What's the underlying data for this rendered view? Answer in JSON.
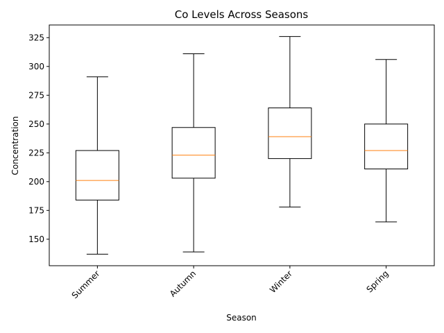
{
  "chart_data": {
    "type": "box",
    "title": "Co Levels Across Seasons",
    "xlabel": "Season",
    "ylabel": "Concentration",
    "ylim": [
      127,
      336
    ],
    "yticks": [
      150,
      175,
      200,
      225,
      250,
      275,
      300,
      325
    ],
    "ytick_labels": [
      "150",
      "175",
      "200",
      "225",
      "250",
      "275",
      "300",
      "325"
    ],
    "categories": [
      "Summer",
      "Autumn",
      "Winter",
      "Spring"
    ],
    "boxes": [
      {
        "category": "Summer",
        "min": 137,
        "q1": 184,
        "median": 201,
        "q3": 227,
        "max": 291
      },
      {
        "category": "Autumn",
        "min": 139,
        "q1": 203,
        "median": 223,
        "q3": 247,
        "max": 311
      },
      {
        "category": "Winter",
        "min": 178,
        "q1": 220,
        "median": 239,
        "q3": 264,
        "max": 326
      },
      {
        "category": "Spring",
        "min": 165,
        "q1": 211,
        "median": 227,
        "q3": 250,
        "max": 306
      }
    ],
    "colors": {
      "box": "#000000",
      "median": "#ff7f0e"
    },
    "grid": false,
    "xtick_rotation": 45
  }
}
